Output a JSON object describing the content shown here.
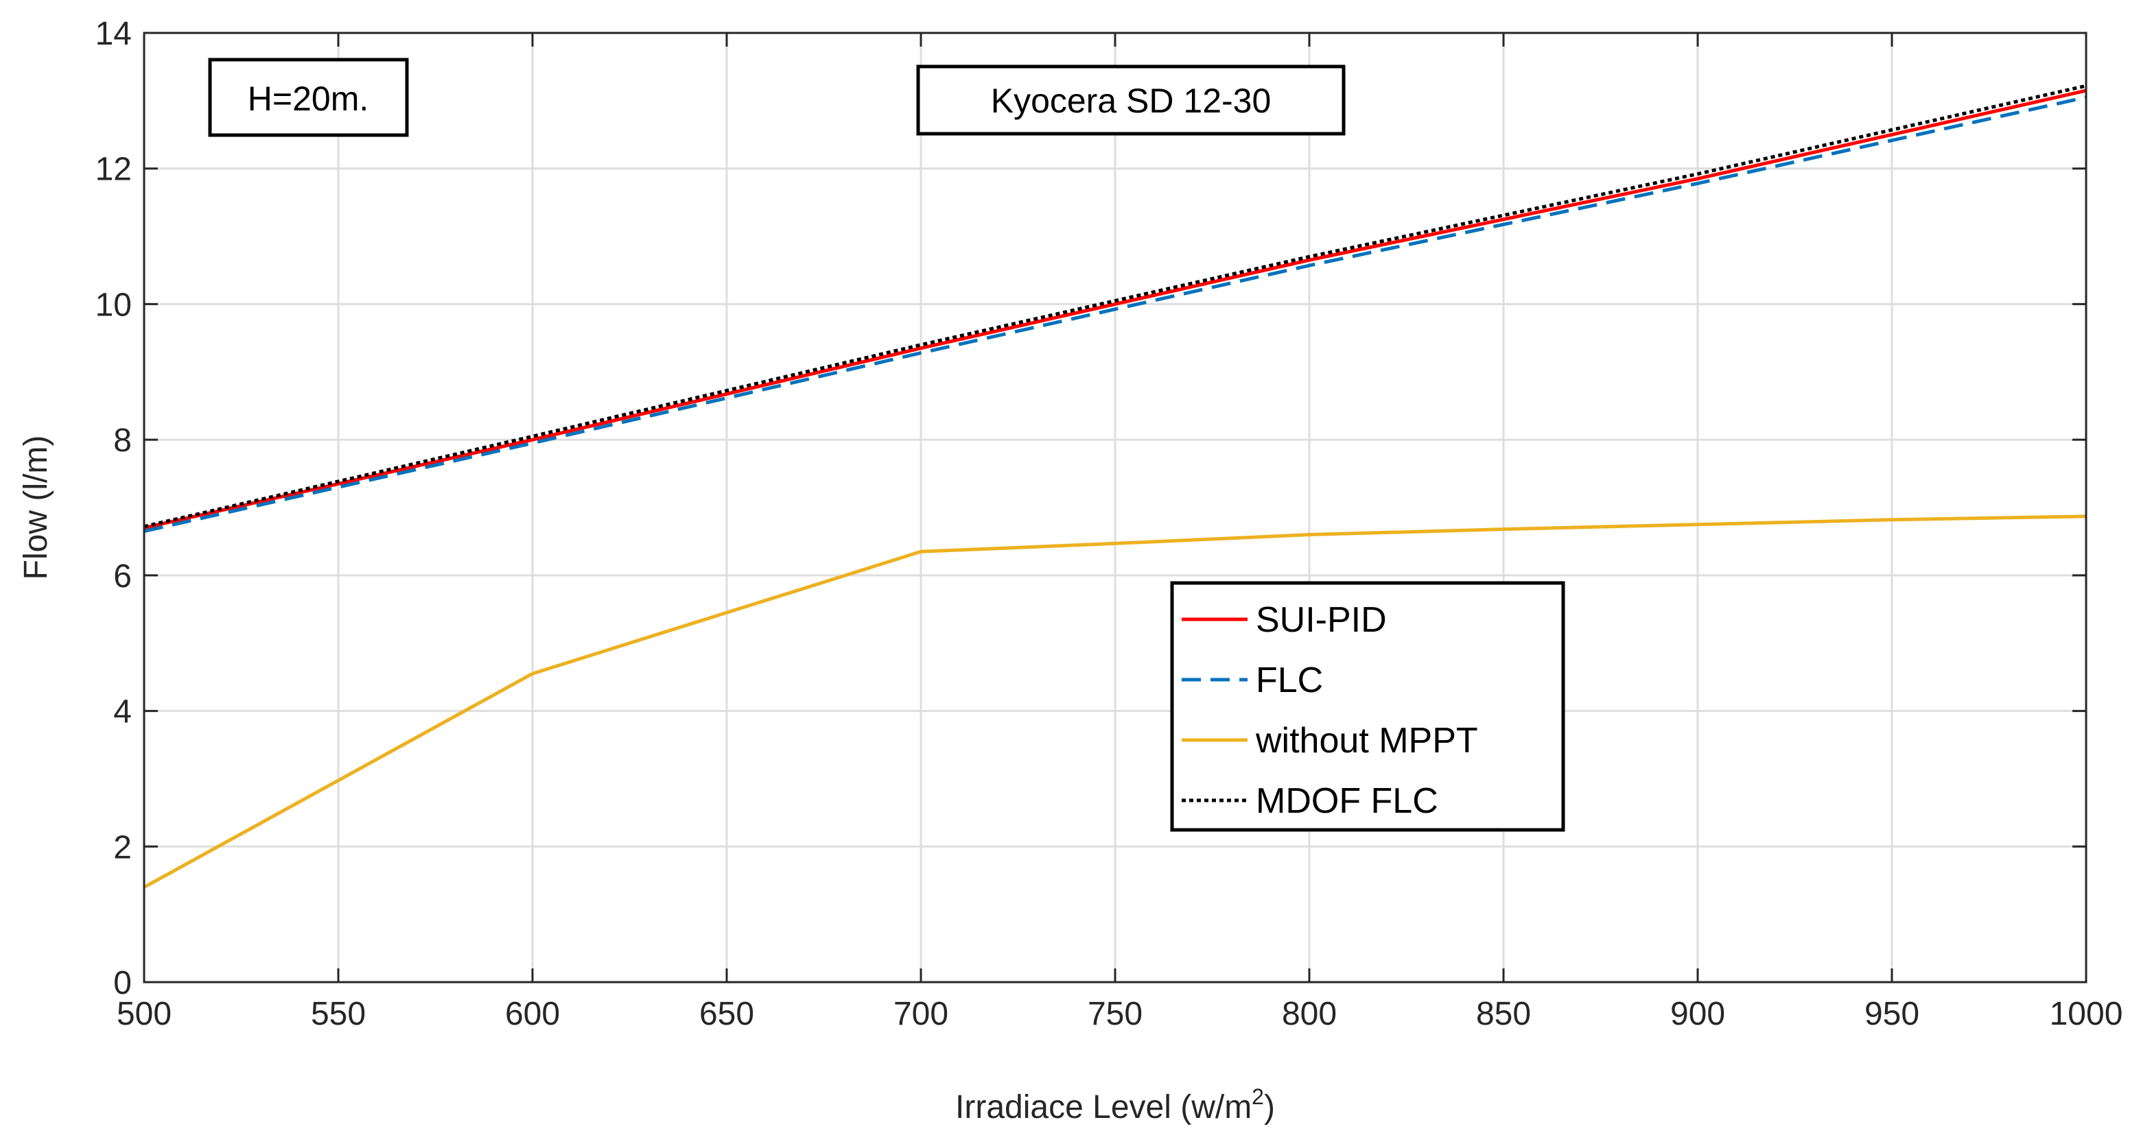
{
  "chart_data": {
    "type": "line",
    "title": "",
    "xlabel": "Irradiace Level (w/m",
    "xlabel_sup": "2",
    "xlabel_end": ")",
    "ylabel": "Flow (l/m)",
    "xlim": [
      500,
      1000
    ],
    "ylim": [
      0,
      14
    ],
    "xticks": [
      500,
      550,
      600,
      650,
      700,
      750,
      800,
      850,
      900,
      950,
      1000
    ],
    "yticks": [
      0,
      2,
      4,
      6,
      8,
      10,
      12,
      14
    ],
    "grid": true,
    "legend_position": "lower-right inside",
    "annotations": [
      "H=20m.",
      "Kyocera SD 12-30"
    ],
    "series": [
      {
        "name": "SUI-PID",
        "color": "#ff0000",
        "dash": "solid",
        "x": [
          500,
          600,
          700,
          800,
          900,
          1000
        ],
        "y": [
          6.7,
          8.0,
          9.35,
          10.65,
          11.85,
          13.15
        ]
      },
      {
        "name": "FLC",
        "color": "#0072bd",
        "dash": "dashed",
        "x": [
          500,
          600,
          700,
          800,
          900,
          1000
        ],
        "y": [
          6.65,
          7.95,
          9.28,
          10.57,
          11.78,
          13.05
        ]
      },
      {
        "name": "without MPPT",
        "color": "#edb120",
        "dash": "solid",
        "x": [
          500,
          600,
          700,
          750,
          800,
          850,
          900,
          950,
          1000
        ],
        "y": [
          1.4,
          4.55,
          6.35,
          6.47,
          6.6,
          6.68,
          6.75,
          6.82,
          6.87
        ]
      },
      {
        "name": "MDOF FLC",
        "color": "#000000",
        "dash": "dotted",
        "x": [
          500,
          600,
          700,
          800,
          900,
          1000
        ],
        "y": [
          6.72,
          8.05,
          9.4,
          10.7,
          11.92,
          13.22
        ]
      }
    ]
  }
}
